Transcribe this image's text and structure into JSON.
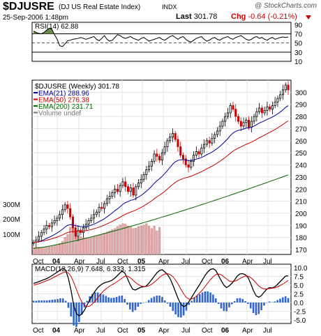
{
  "header": {
    "ticker": "$DJUSRE",
    "company": "(DJ US Real Estate Index)",
    "exchange": "INDX",
    "brand": "@ StockCharts.com",
    "date": "25-Sep-2006 1:48pm",
    "last_label": "Last",
    "last_value": "301.78",
    "chg_label": "Chg",
    "chg_value": "-0.64 (-0.21%)",
    "chg_color": "#cc0000"
  },
  "colors": {
    "up": "#000000",
    "down": "#cc0000",
    "ema21": "#000099",
    "ema50": "#cc0000",
    "ema200": "#006600",
    "volume": "#e0a8a8",
    "macd_hist": "#3366cc",
    "rsi_fill": "#6b8e4e"
  },
  "chart_data": [
    {
      "type": "line",
      "panel": "rsi",
      "title": "RSI(14) 62.88",
      "ylim": [
        10,
        95
      ],
      "yticks": [
        90,
        70,
        50,
        30,
        10
      ],
      "reference_lines": [
        70,
        30
      ],
      "values": [
        76,
        73,
        71,
        70,
        73,
        78,
        82,
        80,
        68,
        58,
        44,
        42,
        48,
        55,
        56,
        58,
        59,
        60,
        62,
        60,
        58,
        60,
        62,
        64,
        58,
        55,
        60,
        66,
        58,
        54,
        56,
        62,
        68,
        66,
        62,
        60,
        62,
        64,
        60,
        58,
        56,
        60,
        62,
        58,
        54,
        56,
        58,
        60,
        62,
        58,
        56,
        60,
        64,
        66,
        62,
        58,
        62,
        64,
        58,
        54,
        52,
        56,
        60,
        62,
        64,
        58,
        54,
        56,
        60,
        62,
        58,
        56,
        60,
        62,
        64,
        60,
        58,
        62,
        64,
        66,
        62,
        58,
        56,
        58,
        62,
        64,
        60,
        62,
        58,
        56,
        60,
        62,
        58,
        60,
        62,
        63,
        62,
        63
      ]
    },
    {
      "type": "candlestick",
      "panel": "price",
      "title": "$DJUSRE (Weekly) 301.78",
      "legend": [
        {
          "name": "EMA(21) 288.96",
          "color": "#000099"
        },
        {
          "name": "EMA(50) 276.38",
          "color": "#cc0000"
        },
        {
          "name": "EMA(200) 231.71",
          "color": "#006600"
        },
        {
          "name": "Volume undef",
          "color": "#777777"
        }
      ],
      "ylim": [
        166,
        310
      ],
      "yticks": [
        300,
        290,
        280,
        270,
        260,
        250,
        240,
        230,
        220,
        210,
        200,
        190,
        180,
        170
      ],
      "volume_ticks": [
        "300M",
        "200M",
        "100M"
      ],
      "xticks": [
        "Oct",
        "04",
        "Apr",
        "Jul",
        "Oct",
        "05",
        "Apr",
        "Jul",
        "Oct",
        "06",
        "Apr",
        "Jul"
      ],
      "close": [
        176,
        178,
        181,
        184,
        187,
        190,
        189,
        192,
        194,
        196,
        199,
        203,
        207,
        204,
        197,
        188,
        181,
        186,
        184,
        188,
        191,
        194,
        196,
        199,
        201,
        205,
        204,
        208,
        212,
        214,
        217,
        220,
        218,
        223,
        226,
        222,
        218,
        221,
        215,
        222,
        225,
        228,
        232,
        236,
        239,
        243,
        249,
        247,
        244,
        250,
        255,
        260,
        263,
        266,
        261,
        255,
        248,
        245,
        240,
        238,
        243,
        248,
        251,
        249,
        254,
        257,
        260,
        258,
        262,
        265,
        268,
        272,
        276,
        280,
        283,
        289,
        286,
        280,
        276,
        272,
        275,
        277,
        271,
        276,
        280,
        284,
        287,
        283,
        285,
        288,
        286,
        289,
        292,
        295,
        298,
        302,
        306,
        302
      ],
      "volume_weekly": [
        30,
        30,
        31,
        31,
        32,
        33,
        34,
        36,
        39,
        42,
        47,
        56,
        73,
        85,
        115,
        140,
        95,
        82,
        75,
        70,
        70,
        72,
        74,
        76,
        78,
        82,
        86,
        90,
        95,
        100,
        105,
        110,
        118,
        125,
        130,
        128,
        120,
        115,
        110,
        112,
        118,
        120,
        124,
        130,
        120,
        110,
        120,
        100,
        115
      ],
      "ema21_last": 288.96,
      "ema50_last": 276.38,
      "ema200_last": 231.71
    },
    {
      "type": "line",
      "panel": "macd",
      "title": "MACD(12,26,9) 7.648, 6.333, 1.315",
      "ylim": [
        -6,
        11
      ],
      "yticks": [
        10.0,
        7.5,
        5.0,
        2.5,
        0.0,
        -2.5,
        -5.0
      ],
      "xticks": [
        "Oct",
        "04",
        "Apr",
        "Jul",
        "Oct",
        "05",
        "Apr",
        "Jul",
        "Oct",
        "06",
        "Apr",
        "Jul"
      ],
      "macd": [
        5.5,
        5.7,
        6.0,
        6.3,
        6.6,
        6.9,
        7.3,
        7.8,
        8.3,
        8.8,
        9.4,
        9.8,
        9.3,
        7.0,
        3.5,
        -0.8,
        -3.2,
        -3.8,
        -3.3,
        -2.2,
        -0.7,
        0.8,
        2.1,
        3.3,
        4.3,
        5.0,
        5.5,
        5.8,
        6.0,
        6.3,
        6.8,
        7.5,
        8.3,
        9.0,
        8.5,
        7.0,
        5.2,
        3.8,
        3.6,
        4.0,
        4.4,
        4.5,
        4.7,
        5.5,
        6.5,
        7.5,
        8.5,
        9.2,
        9.4,
        8.8,
        8.0,
        6.8,
        5.0,
        3.0,
        1.0,
        -0.5,
        -1.2,
        -0.8,
        0.3,
        1.5,
        2.8,
        4.0,
        5.2,
        6.5,
        7.8,
        8.8,
        9.5,
        9.7,
        9.2,
        7.8,
        6.3,
        5.0,
        4.3,
        4.8,
        5.5,
        6.5,
        7.6,
        8.2,
        8.3,
        8.0,
        7.2,
        5.5,
        3.5,
        2.0,
        1.5,
        2.0,
        3.0,
        3.8,
        4.3,
        4.2,
        4.5,
        5.2,
        6.0,
        6.8,
        7.6,
        7.648
      ],
      "signal": [
        5.0,
        5.2,
        5.4,
        5.7,
        6.0,
        6.3,
        6.6,
        7.0,
        7.4,
        7.8,
        8.2,
        8.6,
        8.8,
        8.5,
        7.5,
        5.8,
        3.8,
        1.8,
        0.2,
        -0.8,
        -1.2,
        -1.0,
        -0.4,
        0.4,
        1.4,
        2.4,
        3.2,
        3.9,
        4.5,
        5.0,
        5.4,
        5.9,
        6.4,
        7.0,
        7.5,
        7.6,
        7.2,
        6.5,
        5.8,
        5.2,
        4.8,
        4.6,
        4.6,
        4.8,
        5.2,
        5.8,
        6.5,
        7.2,
        7.8,
        8.2,
        8.3,
        8.0,
        7.4,
        6.4,
        5.2,
        3.8,
        2.5,
        1.5,
        1.0,
        1.0,
        1.4,
        2.0,
        2.8,
        3.6,
        4.6,
        5.6,
        6.6,
        7.4,
        8.0,
        8.2,
        8.0,
        7.4,
        6.8,
        6.2,
        6.0,
        6.1,
        6.4,
        6.9,
        7.3,
        7.6,
        7.6,
        7.2,
        6.5,
        5.6,
        4.8,
        4.2,
        3.9,
        3.9,
        4.0,
        4.1,
        4.2,
        4.5,
        4.9,
        5.3,
        5.8,
        6.333
      ]
    }
  ]
}
